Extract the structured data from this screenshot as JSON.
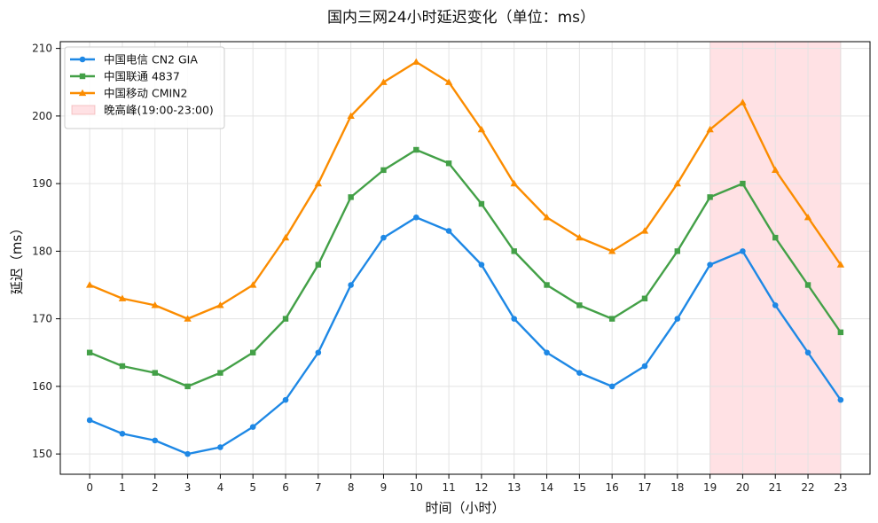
{
  "chart_data": {
    "type": "line",
    "title": "国内三网24小时延迟变化（单位：ms）",
    "xlabel": "时间（小时）",
    "ylabel": "延迟（ms）",
    "x": [
      0,
      1,
      2,
      3,
      4,
      5,
      6,
      7,
      8,
      9,
      10,
      11,
      12,
      13,
      14,
      15,
      16,
      17,
      18,
      19,
      20,
      21,
      22,
      23
    ],
    "xlim": [
      -0.9,
      23.9
    ],
    "ylim": [
      147,
      211
    ],
    "yticks": [
      150,
      160,
      170,
      180,
      190,
      200,
      210
    ],
    "grid": true,
    "legend_position": "top-left",
    "series": [
      {
        "name": "中国电信 CN2 GIA",
        "color": "#1e88e5",
        "marker": "circle",
        "values": [
          155,
          153,
          152,
          150,
          151,
          154,
          158,
          165,
          175,
          182,
          185,
          183,
          178,
          170,
          165,
          162,
          160,
          163,
          170,
          178,
          180,
          172,
          165,
          158
        ]
      },
      {
        "name": "中国联通 4837",
        "color": "#43a047",
        "marker": "square",
        "values": [
          165,
          163,
          162,
          160,
          162,
          165,
          170,
          178,
          188,
          192,
          195,
          193,
          187,
          180,
          175,
          172,
          170,
          173,
          180,
          188,
          190,
          182,
          175,
          168
        ]
      },
      {
        "name": "中国移动 CMIN2",
        "color": "#fb8c00",
        "marker": "triangle",
        "values": [
          175,
          173,
          172,
          170,
          172,
          175,
          182,
          190,
          200,
          205,
          208,
          205,
          198,
          190,
          185,
          182,
          180,
          183,
          190,
          198,
          202,
          192,
          185,
          178
        ]
      }
    ],
    "shaded_region": {
      "label": "晚高峰(19:00-23:00)",
      "x_start": 19,
      "x_end": 23,
      "color": "#ffcdd2"
    }
  }
}
